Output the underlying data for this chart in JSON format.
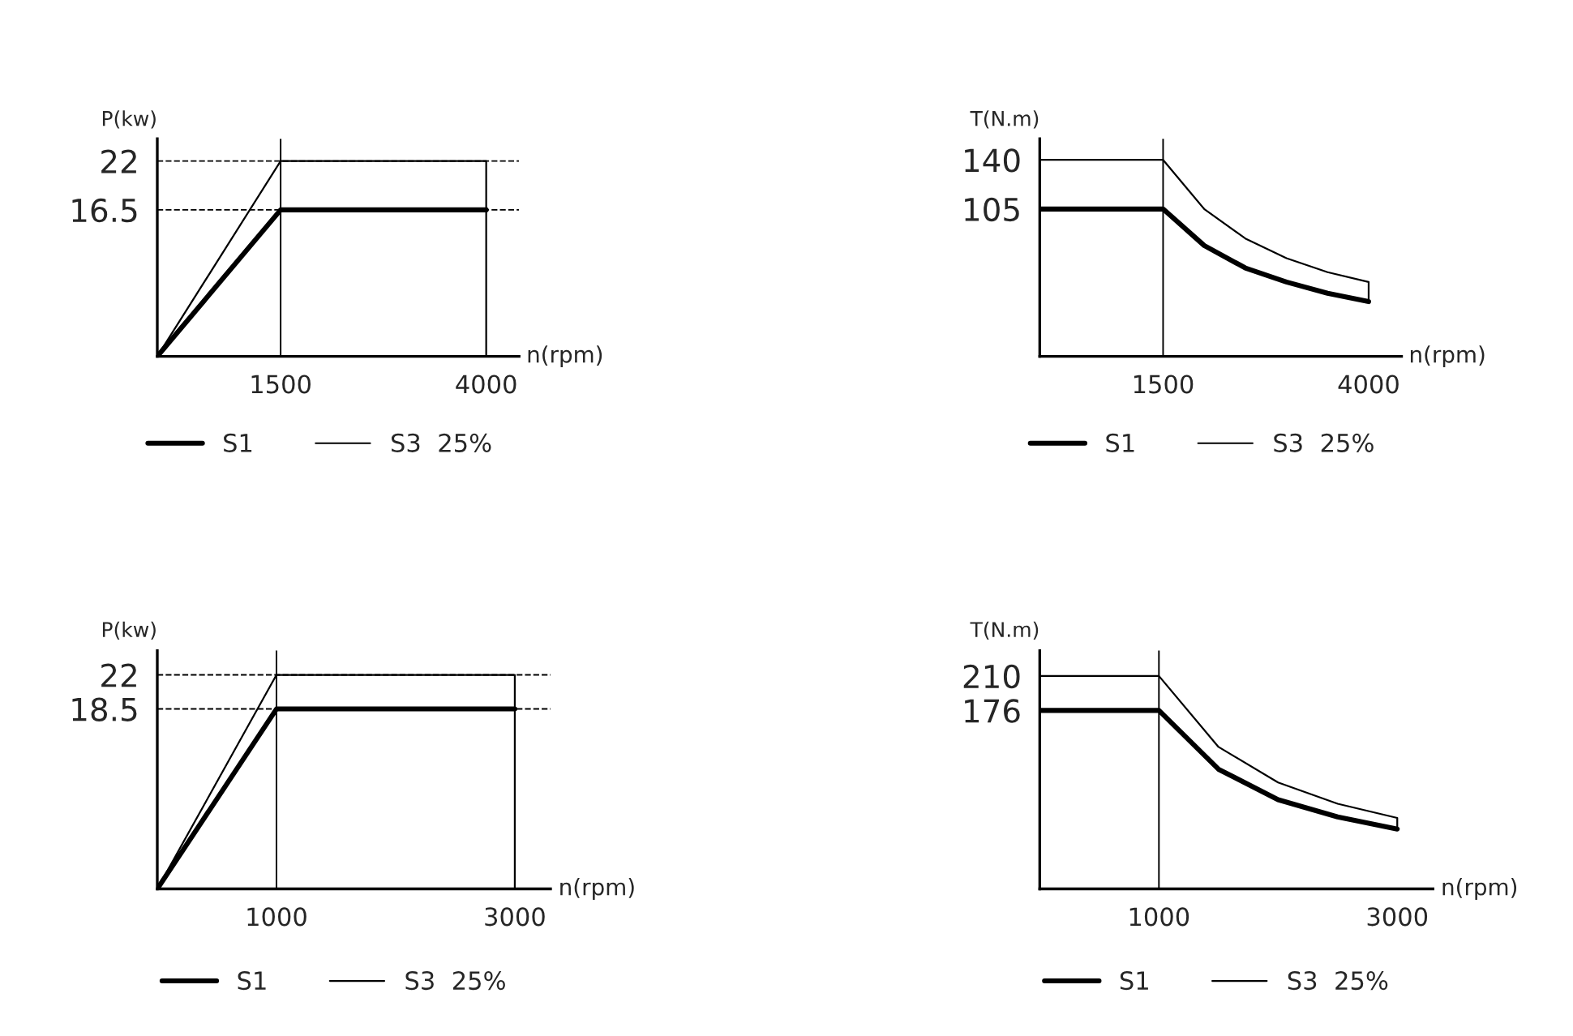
{
  "chart_data": [
    {
      "type": "line",
      "xlabel": "n(rpm)",
      "ylabel": "P(kw)",
      "xlim": [
        0,
        4400
      ],
      "ylim": [
        0,
        24.5
      ],
      "xticks": [
        1500,
        4000
      ],
      "yticks": [
        16.5,
        22
      ],
      "legend": "bottom",
      "grid": false,
      "series": [
        {
          "name": "S1",
          "color": "#000000",
          "x": [
            0,
            1500,
            4000
          ],
          "values": [
            0,
            16.5,
            16.5
          ]
        },
        {
          "name": "S3  25%",
          "color": "#000000",
          "x": [
            0,
            1500,
            4000,
            4000
          ],
          "values": [
            0,
            22,
            22,
            0
          ]
        }
      ],
      "ref_lines": [
        {
          "axis": "y",
          "value": 22,
          "line_style": "dashed",
          "color": "#000000"
        },
        {
          "axis": "y",
          "value": 16.5,
          "line_style": "dashed",
          "color": "#000000"
        },
        {
          "axis": "x",
          "value": 1500,
          "line_style": "solid",
          "color": "#000000"
        }
      ]
    },
    {
      "type": "line",
      "xlabel": "n(rpm)",
      "ylabel": "T(N.m)",
      "xlim": [
        0,
        4400
      ],
      "ylim": [
        0,
        155
      ],
      "xticks": [
        1500,
        4000
      ],
      "yticks": [
        105,
        140
      ],
      "legend": "bottom",
      "grid": false,
      "series": [
        {
          "name": "S1",
          "color": "#000000",
          "x": [
            0,
            1500,
            2000,
            2500,
            3000,
            3500,
            4000
          ],
          "values": [
            105,
            105,
            79,
            63,
            53,
            45,
            39
          ]
        },
        {
          "name": "S3  25%",
          "color": "#000000",
          "x": [
            0,
            1500,
            2000,
            2500,
            3000,
            3500,
            4000,
            4000
          ],
          "values": [
            140,
            140,
            105,
            84,
            70,
            60,
            53,
            39
          ]
        }
      ],
      "ref_lines": [
        {
          "axis": "x",
          "value": 1500,
          "line_style": "solid",
          "color": "#000000"
        }
      ]
    },
    {
      "type": "line",
      "xlabel": "n(rpm)",
      "ylabel": "P(kw)",
      "xlim": [
        0,
        3300
      ],
      "ylim": [
        0,
        24.5
      ],
      "xticks": [
        1000,
        3000
      ],
      "yticks": [
        18.5,
        22
      ],
      "legend": "bottom",
      "grid": false,
      "series": [
        {
          "name": "S1",
          "color": "#000000",
          "x": [
            0,
            1000,
            3000
          ],
          "values": [
            0,
            18.5,
            18.5
          ]
        },
        {
          "name": "S3  25%",
          "color": "#000000",
          "x": [
            0,
            1000,
            3000,
            3000
          ],
          "values": [
            0,
            22,
            22,
            0
          ]
        }
      ],
      "ref_lines": [
        {
          "axis": "y",
          "value": 22,
          "line_style": "dashed",
          "color": "#000000"
        },
        {
          "axis": "y",
          "value": 18.5,
          "line_style": "dashed",
          "color": "#000000"
        },
        {
          "axis": "x",
          "value": 1000,
          "line_style": "solid",
          "color": "#000000"
        }
      ]
    },
    {
      "type": "line",
      "xlabel": "n(rpm)",
      "ylabel": "T(N.m)",
      "xlim": [
        0,
        3300
      ],
      "ylim": [
        0,
        235
      ],
      "xticks": [
        1000,
        3000
      ],
      "yticks": [
        176,
        210
      ],
      "legend": "bottom",
      "grid": false,
      "series": [
        {
          "name": "S1",
          "color": "#000000",
          "x": [
            0,
            1000,
            1500,
            2000,
            2500,
            3000
          ],
          "values": [
            176,
            176,
            118,
            88,
            71,
            59
          ]
        },
        {
          "name": "S3  25%",
          "color": "#000000",
          "x": [
            0,
            1000,
            1500,
            2000,
            2500,
            3000,
            3000
          ],
          "values": [
            210,
            210,
            140,
            105,
            84,
            70,
            59
          ]
        }
      ],
      "ref_lines": [
        {
          "axis": "x",
          "value": 1000,
          "line_style": "solid",
          "color": "#000000"
        }
      ]
    }
  ]
}
